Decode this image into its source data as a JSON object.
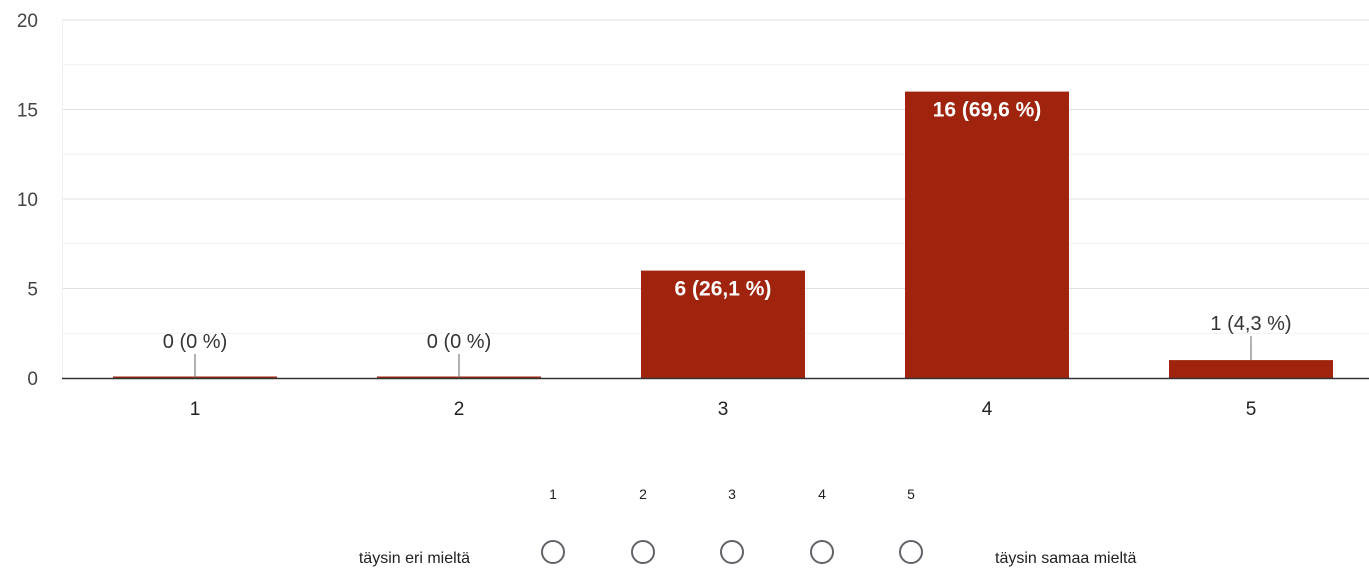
{
  "chart_data": {
    "type": "bar",
    "categories": [
      "1",
      "2",
      "3",
      "4",
      "5"
    ],
    "values": [
      0,
      0,
      6,
      16,
      1
    ],
    "data_labels": [
      "0 (0 %)",
      "0 (0 %)",
      "6 (26,1 %)",
      "16 (69,6 %)",
      "1 (4,3 %)"
    ],
    "yticks": [
      "0",
      "5",
      "10",
      "15",
      "20"
    ],
    "ylim": [
      0,
      20
    ],
    "grid": true,
    "bar_color": "#a0230d"
  },
  "scale": {
    "numbers": [
      "1",
      "2",
      "3",
      "4",
      "5"
    ],
    "low_label": "täysin eri mieltä",
    "high_label": "täysin samaa mieltä"
  }
}
